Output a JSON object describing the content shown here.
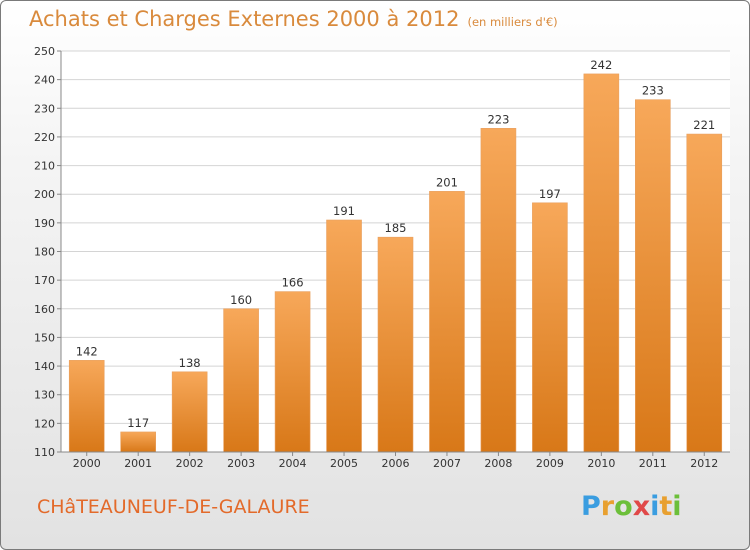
{
  "header": {
    "title": "Achats et Charges Externes 2000 à 2012",
    "subtitle": "(en milliers d'€)"
  },
  "footer": {
    "commune": "CHâTEAUNEUF-DE-GALAURE",
    "logo": {
      "letters": [
        "P",
        "r",
        "o",
        "x",
        "i",
        "t",
        "i"
      ],
      "colors": [
        "#3a9de0",
        "#e8a030",
        "#6cbf3a",
        "#e04848",
        "#3a9de0",
        "#e8a030",
        "#6cbf3a"
      ]
    }
  },
  "chart_data": {
    "type": "bar",
    "title": "Achats et Charges Externes 2000 à 2012",
    "subtitle": "(en milliers d'€)",
    "categories": [
      "2000",
      "2001",
      "2002",
      "2003",
      "2004",
      "2005",
      "2006",
      "2007",
      "2008",
      "2009",
      "2010",
      "2011",
      "2012"
    ],
    "values": [
      142,
      117,
      138,
      160,
      166,
      191,
      185,
      201,
      223,
      197,
      242,
      233,
      221
    ],
    "ylim": [
      110,
      250
    ],
    "yticks": [
      110,
      120,
      130,
      140,
      150,
      160,
      170,
      180,
      190,
      200,
      210,
      220,
      230,
      240,
      250
    ],
    "grid": true,
    "bar_color_top": "#f7a85a",
    "bar_color_bottom": "#d87818",
    "axis_text_color": "#333333"
  }
}
